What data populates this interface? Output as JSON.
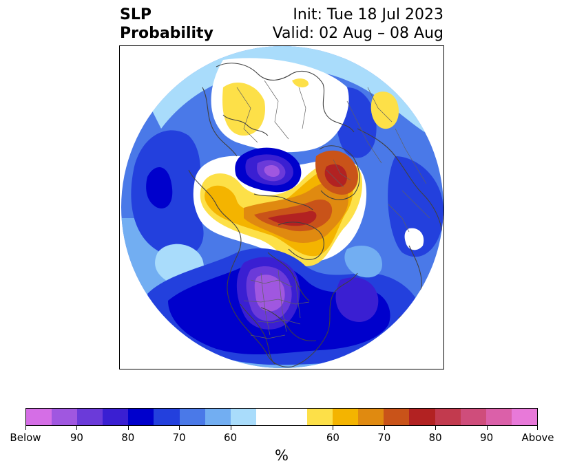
{
  "title": {
    "left_line1": "SLP",
    "left_line2": "Probability",
    "right_line1": "Init: Tue 18 Jul 2023",
    "right_line2": "Valid: 02 Aug – 08 Aug"
  },
  "colorbar": {
    "unit": "%",
    "colors": [
      "#d56ee6",
      "#a057e0",
      "#6b3ad9",
      "#3a1fd2",
      "#0000cc",
      "#2340dd",
      "#4a79e8",
      "#72aef2",
      "#a9dcfb",
      "#ffffff",
      "#ffffff",
      "#fde048",
      "#f4b400",
      "#e08a10",
      "#c95319",
      "#b22222",
      "#c23a4e",
      "#cf4d7b",
      "#db60a9",
      "#e879d9"
    ],
    "labels": [
      "Below",
      "90",
      "80",
      "70",
      "60",
      "60",
      "70",
      "80",
      "90",
      "Above"
    ]
  },
  "map": {
    "projection": "north-polar-stereographic",
    "icons": [
      "coastline-icon",
      "country-border-icon"
    ]
  }
}
